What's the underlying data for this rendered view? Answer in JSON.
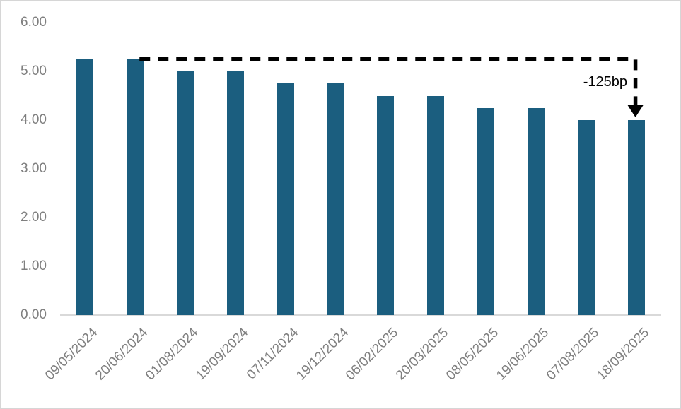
{
  "chart_data": {
    "type": "bar",
    "title": "",
    "xlabel": "",
    "ylabel": "",
    "categories": [
      "09/05/2024",
      "20/06/2024",
      "01/08/2024",
      "19/09/2024",
      "07/11/2024",
      "19/12/2024",
      "06/02/2025",
      "20/03/2025",
      "08/05/2025",
      "19/06/2025",
      "07/08/2025",
      "18/09/2025"
    ],
    "values": [
      5.25,
      5.25,
      5.0,
      5.0,
      4.75,
      4.75,
      4.5,
      4.5,
      4.25,
      4.25,
      4.0,
      4.0
    ],
    "ylim": [
      0,
      6
    ],
    "ytick_labels": [
      "0.00",
      "1.00",
      "2.00",
      "3.00",
      "4.00",
      "5.00",
      "6.00"
    ],
    "grid": false,
    "legend": "none",
    "x_tick_rotation_deg": 45,
    "bar_color": "#1b5e7f",
    "axis_text_color": "#7f7f7f",
    "axis_line_color": "#d9d9d9",
    "annotation": {
      "label": "-125bp",
      "color": "#000000",
      "style": "dashed-elbow-arrow",
      "from_category": "20/06/2024",
      "from_value": 5.25,
      "to_category": "18/09/2025",
      "to_value": 4.0
    }
  }
}
